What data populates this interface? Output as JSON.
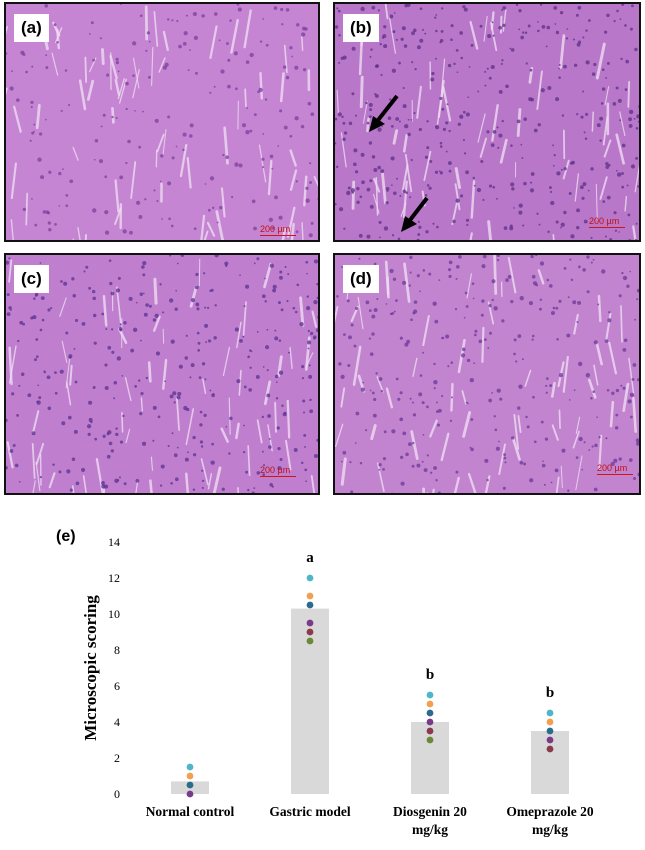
{
  "panels": [
    {
      "label": "(a)",
      "scale_text": "200 µm"
    },
    {
      "label": "(b)",
      "scale_text": "200 µm"
    },
    {
      "label": "(c)",
      "scale_text": "200 µm"
    },
    {
      "label": "(d)",
      "scale_text": "200 µm"
    }
  ],
  "chart_label": "(e)",
  "colors": {
    "bar": "#d9d9d9",
    "stain_light": "#c98bd6",
    "stain_dark": "#6a3a9a"
  },
  "chart_data": {
    "type": "bar",
    "categories": [
      "Normal control",
      "Gastric model",
      "Diosgenin 20 mg/kg",
      "Omeprazole 20 mg/kg"
    ],
    "category_lines": [
      [
        "Normal control"
      ],
      [
        "Gastric model"
      ],
      [
        "Diosgenin 20",
        "mg/kg"
      ],
      [
        "Omeprazole 20",
        "mg/kg"
      ]
    ],
    "values": [
      0.7,
      10.3,
      4.0,
      3.5
    ],
    "significance": [
      "",
      "a",
      "b",
      "b"
    ],
    "points": [
      [
        1.5,
        1.0,
        0.5,
        0.0
      ],
      [
        12.0,
        11.0,
        10.5,
        9.5,
        9.0,
        8.5
      ],
      [
        5.5,
        5.0,
        4.5,
        4.0,
        3.5,
        3.0
      ],
      [
        4.5,
        4.0,
        3.5,
        3.0,
        2.5
      ]
    ],
    "point_colors": [
      "#4fb6c8",
      "#f0a050",
      "#2c6b8c",
      "#7a3a8a",
      "#8a3a4a",
      "#6a8a3a",
      "#a070c0",
      "#3a4a7a"
    ],
    "ylabel": "Microscopic scoring",
    "xlabel": "",
    "ylim": [
      0,
      14
    ],
    "yticks": [
      0,
      2,
      4,
      6,
      8,
      10,
      12,
      14
    ]
  }
}
